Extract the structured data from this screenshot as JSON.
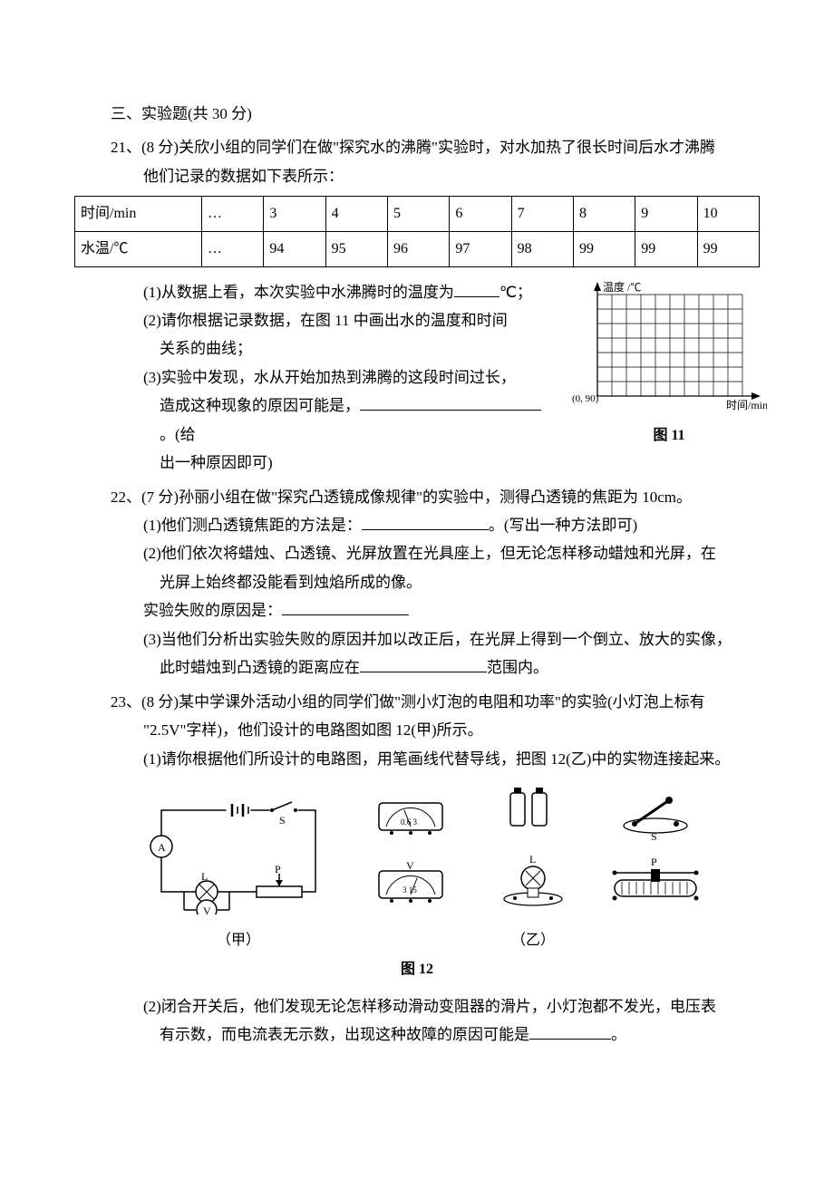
{
  "section": {
    "title": "三、实验题(共 30 分)"
  },
  "q21": {
    "number": "21、",
    "points": "(8 分)",
    "intro1": "关欣小组的同学们在做\"探究水的沸腾\"实验时，对水加热了很长时间后水才沸腾",
    "intro2": "他们记录的数据如下表所示：",
    "table": {
      "row1_label": "时间/min",
      "row2_label": "水温/℃",
      "cols": [
        "…",
        "3",
        "4",
        "5",
        "6",
        "7",
        "8",
        "9",
        "10"
      ],
      "temps": [
        "…",
        "94",
        "95",
        "96",
        "97",
        "98",
        "99",
        "99",
        "99"
      ]
    },
    "sub1_a": "(1)从数据上看，本次实验中水沸腾时的温度为",
    "sub1_b": "℃；",
    "sub2_a": "(2)请你根据记录数据，在图 11 中画出水的温度和时间",
    "sub2_b": "关系的曲线；",
    "sub3_a": "(3)实验中发现，水从开始加热到沸腾的这段时间过长，",
    "sub3_b": "造成这种现象的原因可能是，",
    "sub3_c": "。(给",
    "sub3_d": "出一种原因即可)",
    "graph": {
      "ylabel": "温度 /℃",
      "xlabel": "时间/min",
      "origin": "(0, 90)",
      "caption": "图 11",
      "grid_color": "#000000",
      "background": "#ffffff",
      "cols": 10,
      "rows": 7,
      "cell": 16
    }
  },
  "q22": {
    "number": "22、",
    "points": "(7 分)",
    "intro": "孙丽小组在做\"探究凸透镜成像规律\"的实验中，测得凸透镜的焦距为 10cm。",
    "sub1_a": "(1)他们测凸透镜焦距的方法是：",
    "sub1_b": "。(写出一种方法即可)",
    "sub2_a": "(2)他们依次将蜡烛、凸透镜、光屏放置在光具座上，但无论怎样移动蜡烛和光屏，在",
    "sub2_b": "光屏上始终都没能看到烛焰所成的像。",
    "sub2_c": "实验失败的原因是：",
    "sub3_a": "(3)当他们分析出实验失败的原因并加以改正后，在光屏上得到一个倒立、放大的实像，",
    "sub3_b": "此时蜡烛到凸透镜的距离应在",
    "sub3_c": "范围内。"
  },
  "q23": {
    "number": "23、",
    "points": "(8 分)",
    "intro1": "某中学课外活动小组的同学们做\"测小灯泡的电阻和功率\"的实验(小灯泡上标有",
    "intro2": "\"2.5V\"字样)，他们设计的电路图如图 12(甲)所示。",
    "sub1": "(1)请你根据他们所设计的电路图，用笔画线代替导线，把图 12(乙)中的实物连接起来。",
    "caption_jia": "（甲）",
    "caption_yi": "（乙）",
    "fig_caption": "图 12",
    "sub2_a": "(2)闭合开关后，他们发现无论怎样移动滑动变阻器的滑片，小灯泡都不发光，电压表",
    "sub2_b": "有示数，而电流表无示数，出现这种故障的原因可能是",
    "sub2_c": "。",
    "circuit": {
      "labels": {
        "A": "A",
        "V": "V",
        "S": "S",
        "P": "P",
        "L": "L"
      },
      "meter_dial": "0.6 3",
      "volt_dial": "3 15"
    }
  }
}
